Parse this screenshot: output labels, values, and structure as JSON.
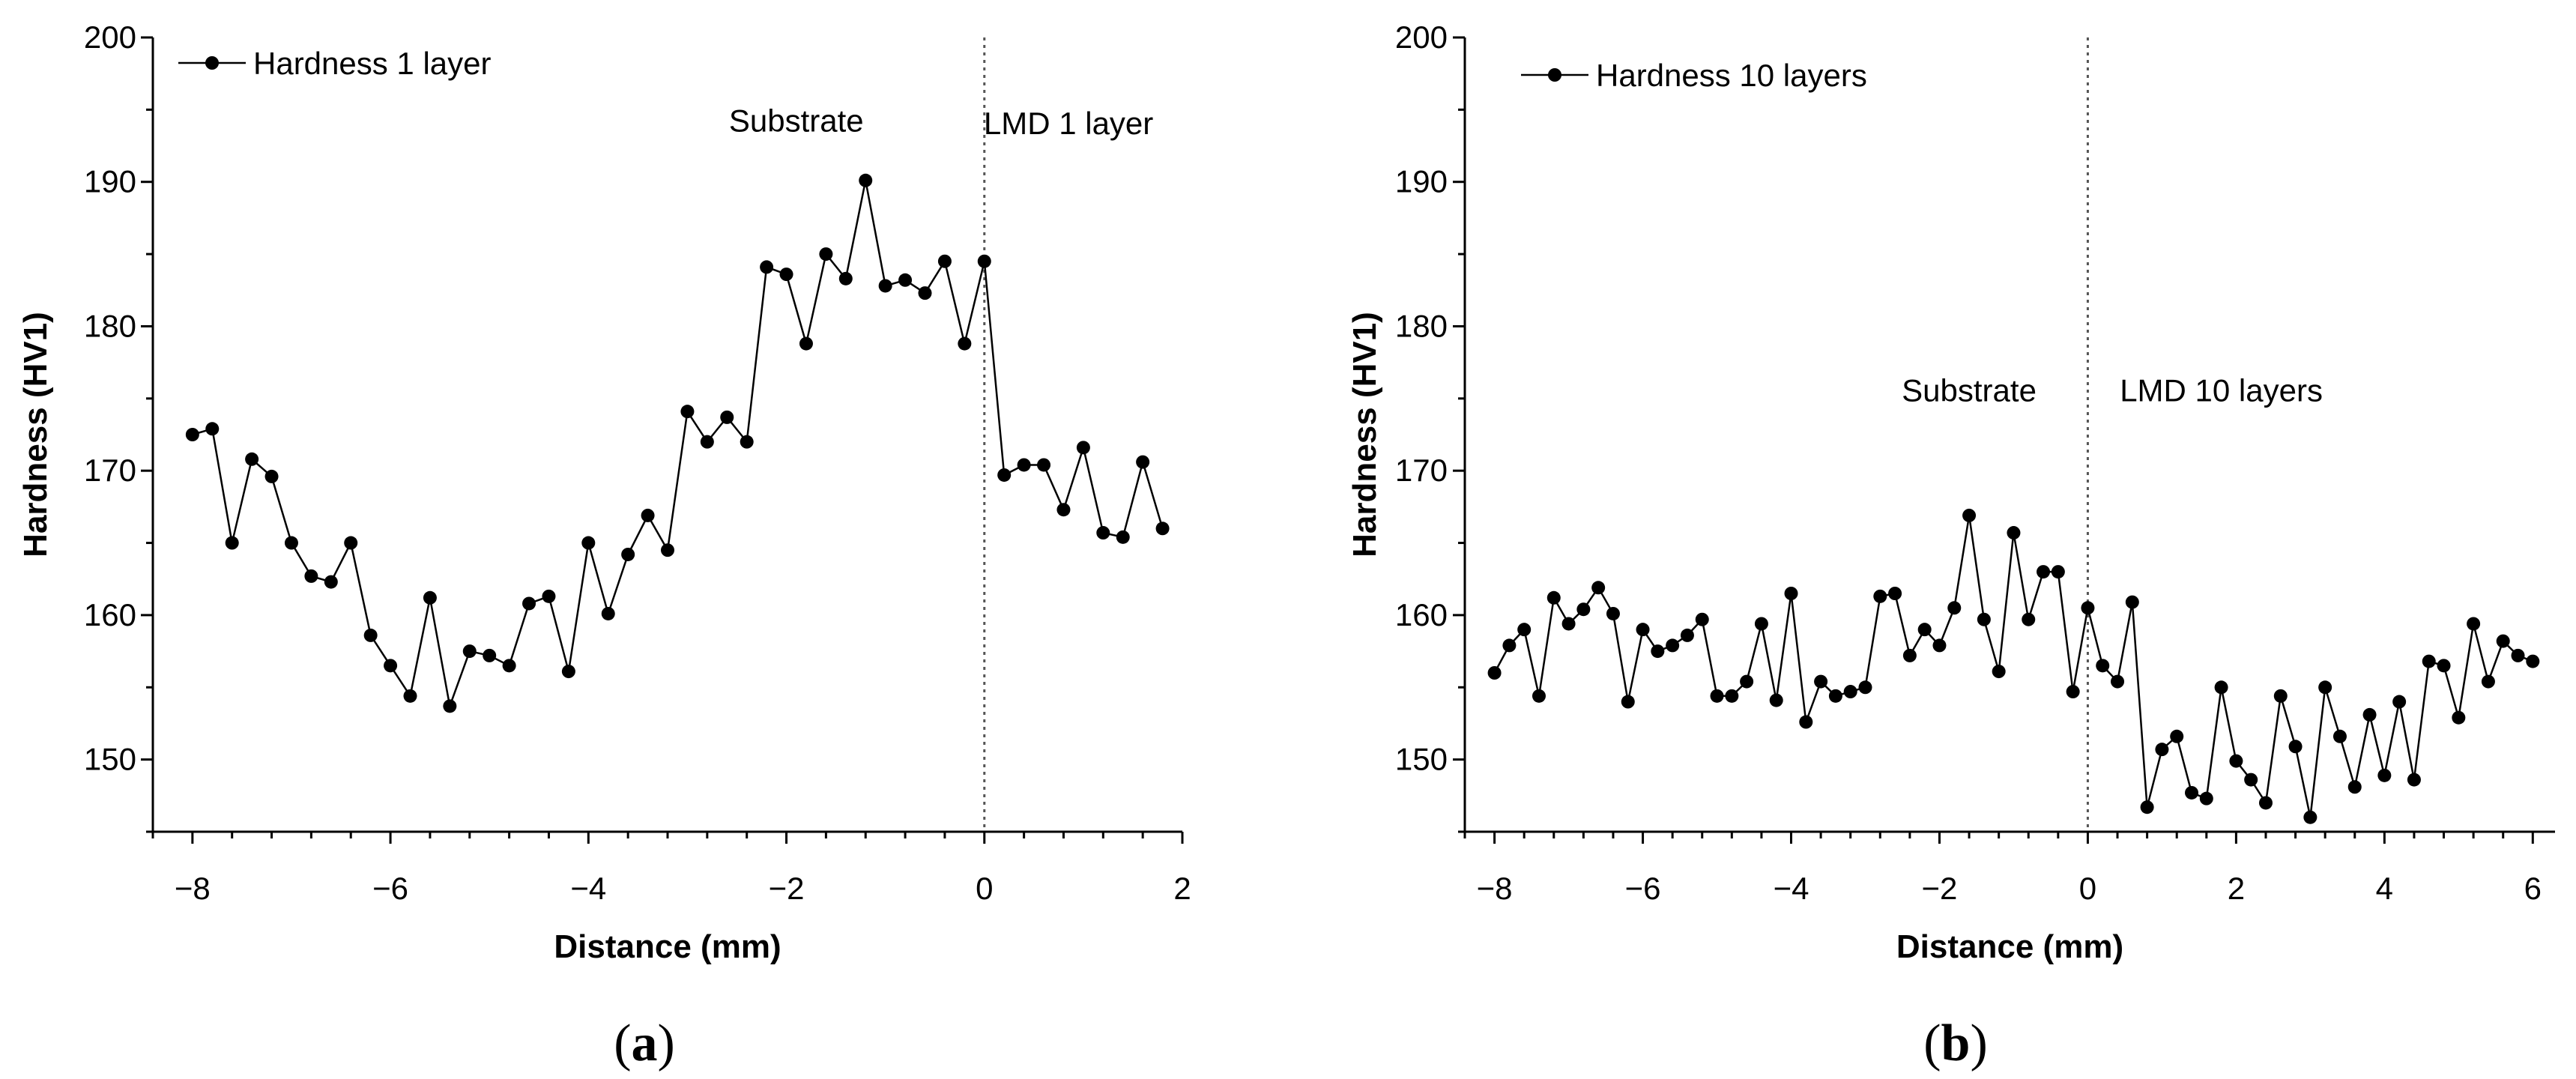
{
  "panels": [
    {
      "caption": "(a)",
      "caption_parts": [
        "(",
        "a",
        ")"
      ],
      "chart_data": {
        "type": "line",
        "title": "",
        "xlabel": "Distance (mm)",
        "ylabel": "Hardness (HV1)",
        "xlim": [
          -8.4,
          2.0
        ],
        "ylim": [
          145,
          200
        ],
        "xticks": [
          -8,
          -6,
          -4,
          -2,
          0,
          2
        ],
        "yticks": [
          150,
          160,
          170,
          180,
          190,
          200
        ],
        "marker": "circle",
        "legend_position": "top-left",
        "boundary_x": 0,
        "annotations": [
          {
            "text": "Substrate",
            "x": -1.9,
            "y": 193.5
          },
          {
            "text": "LMD 1 layer",
            "x": 0.85,
            "y": 193.3
          }
        ],
        "series": [
          {
            "name": "Hardness 1 layer",
            "x": [
              -8.0,
              -7.8,
              -7.6,
              -7.4,
              -7.2,
              -7.0,
              -6.8,
              -6.6,
              -6.4,
              -6.2,
              -6.0,
              -5.8,
              -5.6,
              -5.4,
              -5.2,
              -5.0,
              -4.8,
              -4.6,
              -4.4,
              -4.2,
              -4.0,
              -3.8,
              -3.6,
              -3.4,
              -3.2,
              -3.0,
              -2.8,
              -2.6,
              -2.4,
              -2.2,
              -2.0,
              -1.8,
              -1.6,
              -1.4,
              -1.2,
              -1.0,
              -0.8,
              -0.6,
              -0.4,
              -0.2,
              0.0,
              0.2,
              0.4,
              0.6,
              0.8,
              1.0,
              1.2,
              1.4,
              1.6,
              1.8
            ],
            "y": [
              172.5,
              172.9,
              165.0,
              170.8,
              169.6,
              165.0,
              162.7,
              162.3,
              165.0,
              158.6,
              156.5,
              154.4,
              161.2,
              153.7,
              157.5,
              157.2,
              156.5,
              160.8,
              161.3,
              156.1,
              165.0,
              160.1,
              164.2,
              166.9,
              164.5,
              174.1,
              172.0,
              173.7,
              172.0,
              184.1,
              183.6,
              178.8,
              185.0,
              183.3,
              190.1,
              182.8,
              183.2,
              182.3,
              184.5,
              178.8,
              184.5,
              169.7,
              170.4,
              170.4,
              167.3,
              171.6,
              165.7,
              165.4,
              170.6,
              166.0
            ]
          }
        ]
      }
    },
    {
      "caption": "(b)",
      "caption_parts": [
        "(",
        "b",
        ")"
      ],
      "chart_data": {
        "type": "line",
        "title": "",
        "xlabel": "Distance (mm)",
        "ylabel": "Hardness (HV1)",
        "xlim": [
          -8.4,
          6.3
        ],
        "ylim": [
          145,
          200
        ],
        "xticks": [
          -8,
          -6,
          -4,
          -2,
          0,
          2,
          4,
          6
        ],
        "yticks": [
          150,
          160,
          170,
          180,
          190,
          200
        ],
        "marker": "circle",
        "legend_position": "top-left",
        "boundary_x": 0,
        "annotations": [
          {
            "text": "Substrate",
            "x": -1.6,
            "y": 174.8
          },
          {
            "text": "LMD 10 layers",
            "x": 1.8,
            "y": 174.8
          }
        ],
        "series": [
          {
            "name": "Hardness 10 layers",
            "x": [
              -8.0,
              -7.8,
              -7.6,
              -7.4,
              -7.2,
              -7.0,
              -6.8,
              -6.6,
              -6.4,
              -6.2,
              -6.0,
              -5.8,
              -5.6,
              -5.4,
              -5.2,
              -5.0,
              -4.8,
              -4.6,
              -4.4,
              -4.2,
              -4.0,
              -3.8,
              -3.6,
              -3.4,
              -3.2,
              -3.0,
              -2.8,
              -2.6,
              -2.4,
              -2.2,
              -2.0,
              -1.8,
              -1.6,
              -1.4,
              -1.2,
              -1.0,
              -0.8,
              -0.6,
              -0.4,
              -0.2,
              0.0,
              0.2,
              0.4,
              0.6,
              0.8,
              1.0,
              1.2,
              1.4,
              1.6,
              1.8,
              2.0,
              2.2,
              2.4,
              2.6,
              2.8,
              3.0,
              3.2,
              3.4,
              3.6,
              3.8,
              4.0,
              4.2,
              4.4,
              4.6,
              4.8,
              5.0,
              5.2,
              5.4,
              5.6,
              5.8,
              6.0
            ],
            "y": [
              156.0,
              157.9,
              159.0,
              154.4,
              161.2,
              159.4,
              160.4,
              161.9,
              160.1,
              154.0,
              159.0,
              157.5,
              157.9,
              158.6,
              159.7,
              154.4,
              154.4,
              155.4,
              159.4,
              154.1,
              161.5,
              152.6,
              155.4,
              154.4,
              154.7,
              155.0,
              161.3,
              161.5,
              157.2,
              159.0,
              157.9,
              160.5,
              166.9,
              159.7,
              156.1,
              165.7,
              159.7,
              163.0,
              163.0,
              154.7,
              160.5,
              156.5,
              155.4,
              160.9,
              146.7,
              150.7,
              151.6,
              147.7,
              147.3,
              155.0,
              149.9,
              148.6,
              147.0,
              154.4,
              150.9,
              146.0,
              155.0,
              151.6,
              148.1,
              153.1,
              148.9,
              154.0,
              148.6,
              156.8,
              156.5,
              152.9,
              159.4,
              155.4,
              158.2,
              157.2,
              156.8
            ]
          }
        ]
      }
    }
  ]
}
